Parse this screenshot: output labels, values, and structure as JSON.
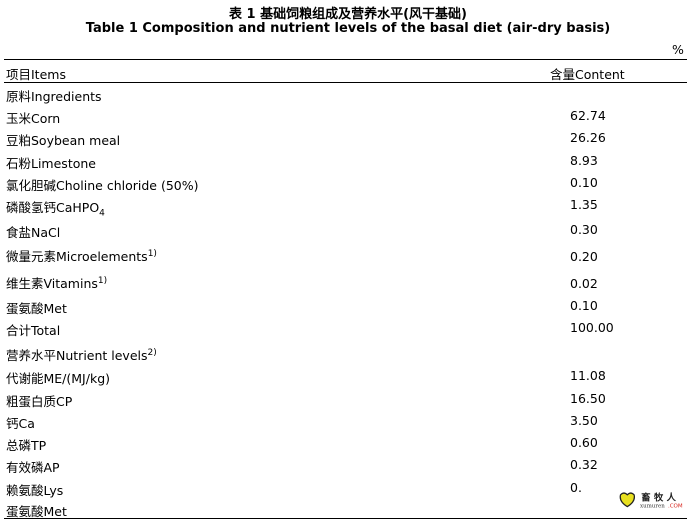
{
  "title_cn": "表 1 基础饲粮组成及营养水平(风干基础)",
  "title_en": "Table 1 Composition and nutrient levels of the basal diet (air-dry basis)",
  "unit": "%",
  "headers": {
    "items": "项目Items",
    "content": "含量Content"
  },
  "rows": [
    {
      "label": "原料Ingredients",
      "value": ""
    },
    {
      "label": "玉米Corn",
      "value": "62.74"
    },
    {
      "label": "豆粕Soybean meal",
      "value": "26.26"
    },
    {
      "label": "石粉Limestone",
      "value": "8.93"
    },
    {
      "label": "氯化胆碱Choline chloride (50%)",
      "value": "0.10"
    },
    {
      "label": "磷酸氢钙CaHPO",
      "sub": "4",
      "value": "1.35"
    },
    {
      "label": "食盐NaCl",
      "value": "0.30"
    },
    {
      "label": "微量元素Microelements",
      "sup": "1)",
      "value": "0.20"
    },
    {
      "label": "维生素Vitamins",
      "sup": "1)",
      "value": "0.02"
    },
    {
      "label": "蛋氨酸Met",
      "value": "0.10"
    },
    {
      "label": "合计Total",
      "value": "100.00"
    },
    {
      "label": "营养水平Nutrient levels",
      "sup": "2)",
      "value": ""
    },
    {
      "label": "代谢能ME/(MJ/kg)",
      "value": "11.08"
    },
    {
      "label": "粗蛋白质CP",
      "value": "16.50"
    },
    {
      "label": "钙Ca",
      "value": "3.50"
    },
    {
      "label": "总磷TP",
      "value": "0.60"
    },
    {
      "label": "有效磷AP",
      "value": "0.32"
    },
    {
      "label": "赖氨酸Lys",
      "value": "0."
    },
    {
      "label": "蛋氨酸Met",
      "value": ""
    }
  ],
  "watermark": {
    "cn": "畜牧人",
    "en": "xumuren",
    "com": ".COM"
  },
  "colors": {
    "watermark_red": "#d8261e",
    "heart": "#e8e020"
  }
}
